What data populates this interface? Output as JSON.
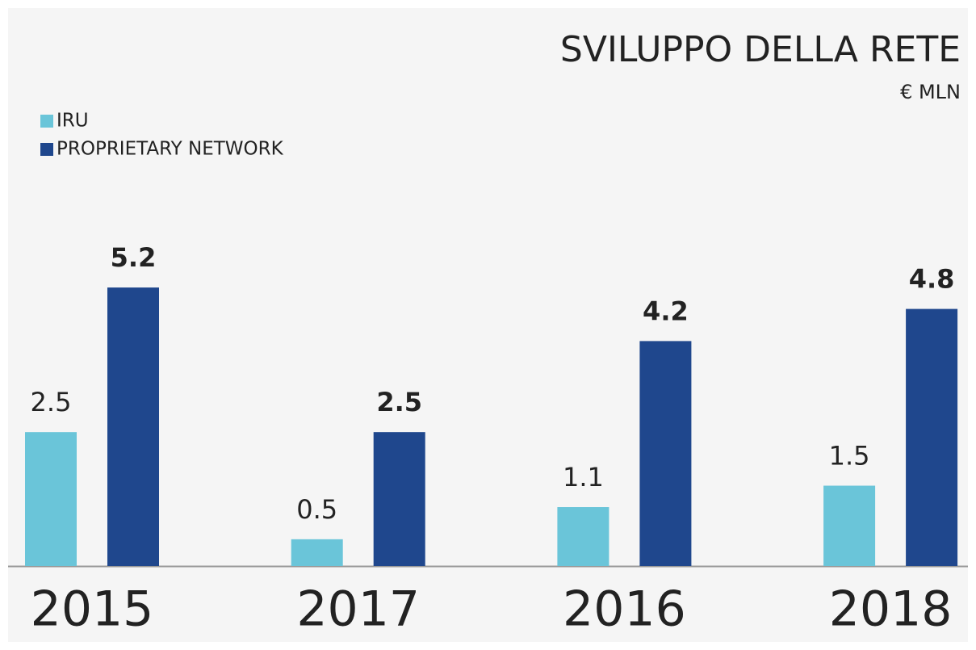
{
  "chart_data": {
    "type": "bar",
    "title": "SVILUPPO DELLA RETE",
    "subtitle": "€ MLN",
    "categories": [
      "2015",
      "2017",
      "2016",
      "2018"
    ],
    "series": [
      {
        "name": "IRU",
        "color": "#6ac5d9",
        "values": [
          2.5,
          0.5,
          1.1,
          1.5
        ]
      },
      {
        "name": "PROPRIETARY NETWORK",
        "color": "#1f478d",
        "values": [
          5.2,
          2.5,
          4.2,
          4.8
        ]
      }
    ],
    "ylim": [
      0,
      6
    ],
    "legend": "top-left"
  }
}
